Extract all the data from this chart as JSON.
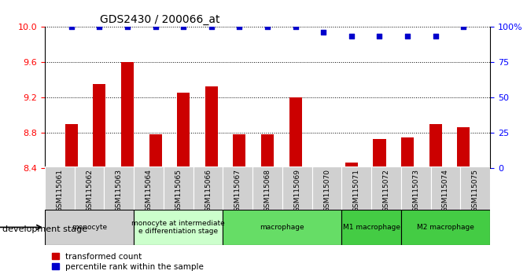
{
  "title": "GDS2430 / 200066_at",
  "samples": [
    "GSM115061",
    "GSM115062",
    "GSM115063",
    "GSM115064",
    "GSM115065",
    "GSM115066",
    "GSM115067",
    "GSM115068",
    "GSM115069",
    "GSM115070",
    "GSM115071",
    "GSM115072",
    "GSM115073",
    "GSM115074",
    "GSM115075"
  ],
  "bar_values": [
    8.9,
    9.35,
    9.6,
    8.78,
    9.25,
    9.32,
    8.78,
    8.78,
    9.2,
    8.4,
    8.46,
    8.73,
    8.75,
    8.9,
    8.86
  ],
  "percentile_pct": [
    100,
    100,
    100,
    100,
    100,
    100,
    100,
    100,
    100,
    96,
    93,
    93,
    93,
    93,
    100
  ],
  "bar_color": "#cc0000",
  "dot_color": "#0000cc",
  "ylim_left": [
    8.4,
    10.0
  ],
  "ylim_right": [
    0,
    100
  ],
  "yticks_left": [
    8.4,
    8.8,
    9.2,
    9.6,
    10.0
  ],
  "yticks_right": [
    0,
    25,
    50,
    75,
    100
  ],
  "grid_values": [
    8.8,
    9.2,
    9.6
  ],
  "groups": [
    {
      "label": "monocyte",
      "start": 0,
      "end": 3,
      "color": "#d0d0d0"
    },
    {
      "label": "monocyte at intermediate\ne differentiation stage",
      "start": 3,
      "end": 6,
      "color": "#ccffcc"
    },
    {
      "label": "macrophage",
      "start": 6,
      "end": 10,
      "color": "#66dd66"
    },
    {
      "label": "M1 macrophage",
      "start": 10,
      "end": 12,
      "color": "#44cc44"
    },
    {
      "label": "M2 macrophage",
      "start": 12,
      "end": 15,
      "color": "#44cc44"
    }
  ],
  "xlabel": "development stage",
  "legend_labels": [
    "transformed count",
    "percentile rank within the sample"
  ]
}
